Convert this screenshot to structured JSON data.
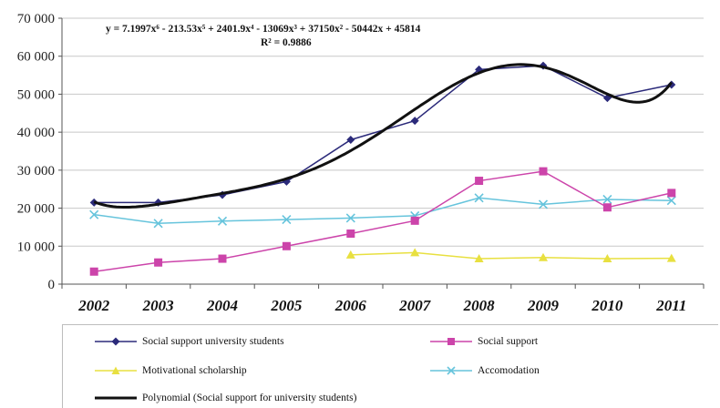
{
  "chart_data": {
    "type": "line",
    "categories": [
      "2002",
      "2003",
      "2004",
      "2005",
      "2006",
      "2007",
      "2008",
      "2009",
      "2010",
      "2011"
    ],
    "ylim": [
      0,
      70000
    ],
    "yticks": [
      0,
      10000,
      20000,
      30000,
      40000,
      50000,
      60000,
      70000
    ],
    "ytick_labels": [
      "0",
      "10 000",
      "20 000",
      "30 000",
      "40 000",
      "50 000",
      "60 000",
      "70 000"
    ],
    "equation": "y = 7.1997x⁶ - 213.53x⁵ + 2401.9x⁴ - 13069x³ + 37150x² - 50442x + 45814",
    "r_squared": "R² = 0.9886",
    "series": [
      {
        "name": "Social support university students",
        "color": "#2b2a7a",
        "marker": "diamond",
        "values": [
          21500,
          21500,
          23500,
          27000,
          38000,
          43000,
          56500,
          57500,
          49000,
          52500
        ]
      },
      {
        "name": "Social support",
        "color": "#cc44aa",
        "marker": "square",
        "values": [
          3300,
          5700,
          6700,
          10000,
          13300,
          16700,
          27200,
          29700,
          20200,
          24000
        ]
      },
      {
        "name": "Motivational scholarship",
        "color": "#e8e040",
        "marker": "triangle",
        "values": [
          null,
          null,
          null,
          null,
          7700,
          8300,
          6700,
          7000,
          6700,
          6800
        ]
      },
      {
        "name": "Accomodation",
        "color": "#66c4dc",
        "marker": "x",
        "values": [
          18300,
          16000,
          16600,
          17000,
          17400,
          18000,
          22700,
          21000,
          22300,
          22000
        ]
      }
    ],
    "trendline": {
      "name": "Polynomial (Social support for university students)",
      "color": "#111111",
      "coefficients": [
        45814,
        -50442,
        37150,
        -13069,
        2401.9,
        -213.53,
        7.1997
      ]
    },
    "grid": "horizontal",
    "legend_position": "bottom"
  }
}
